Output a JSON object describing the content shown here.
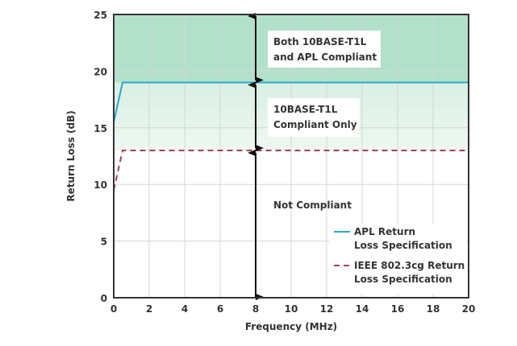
{
  "chart_data": {
    "type": "line",
    "xlabel": "Frequency (MHz)",
    "ylabel": "Return Loss (dB)",
    "xlim": [
      0,
      20
    ],
    "ylim": [
      0,
      25
    ],
    "xticks": [
      "0",
      "2",
      "4",
      "6",
      "8",
      "10",
      "12",
      "14",
      "16",
      "18",
      "20"
    ],
    "yticks": [
      "0",
      "5",
      "10",
      "15",
      "20",
      "25"
    ],
    "grid": true,
    "legend_position": "bottom-right",
    "series": [
      {
        "name": "APL Return Loss Specification",
        "name_lines": [
          "APL Return",
          "Loss Specification"
        ],
        "style": "solid",
        "color": "#2aa6cf",
        "x": [
          0,
          0.5,
          20
        ],
        "y": [
          15.5,
          19,
          19
        ]
      },
      {
        "name": "IEEE 802.3cg Return Loss Specification",
        "name_lines": [
          "IEEE 802.3cg Return",
          "Loss Specification"
        ],
        "style": "dashed",
        "color": "#b03a5b",
        "x": [
          0,
          0.5,
          20
        ],
        "y": [
          9.5,
          13,
          13
        ]
      }
    ],
    "regions": [
      {
        "label_lines": [
          "Both 10BASE-T1L",
          "and APL Compliant"
        ],
        "y_range": [
          19,
          25
        ],
        "color": "#b3e0cb"
      },
      {
        "label_lines": [
          "10BASE-T1L",
          "Compliant Only"
        ],
        "y_range": [
          13,
          19
        ],
        "color": "#e2f3ea"
      },
      {
        "label_lines": [
          "Not Compliant"
        ],
        "y_range": [
          0,
          13
        ],
        "color": "#ffffff"
      }
    ],
    "arrow_x": 8
  }
}
